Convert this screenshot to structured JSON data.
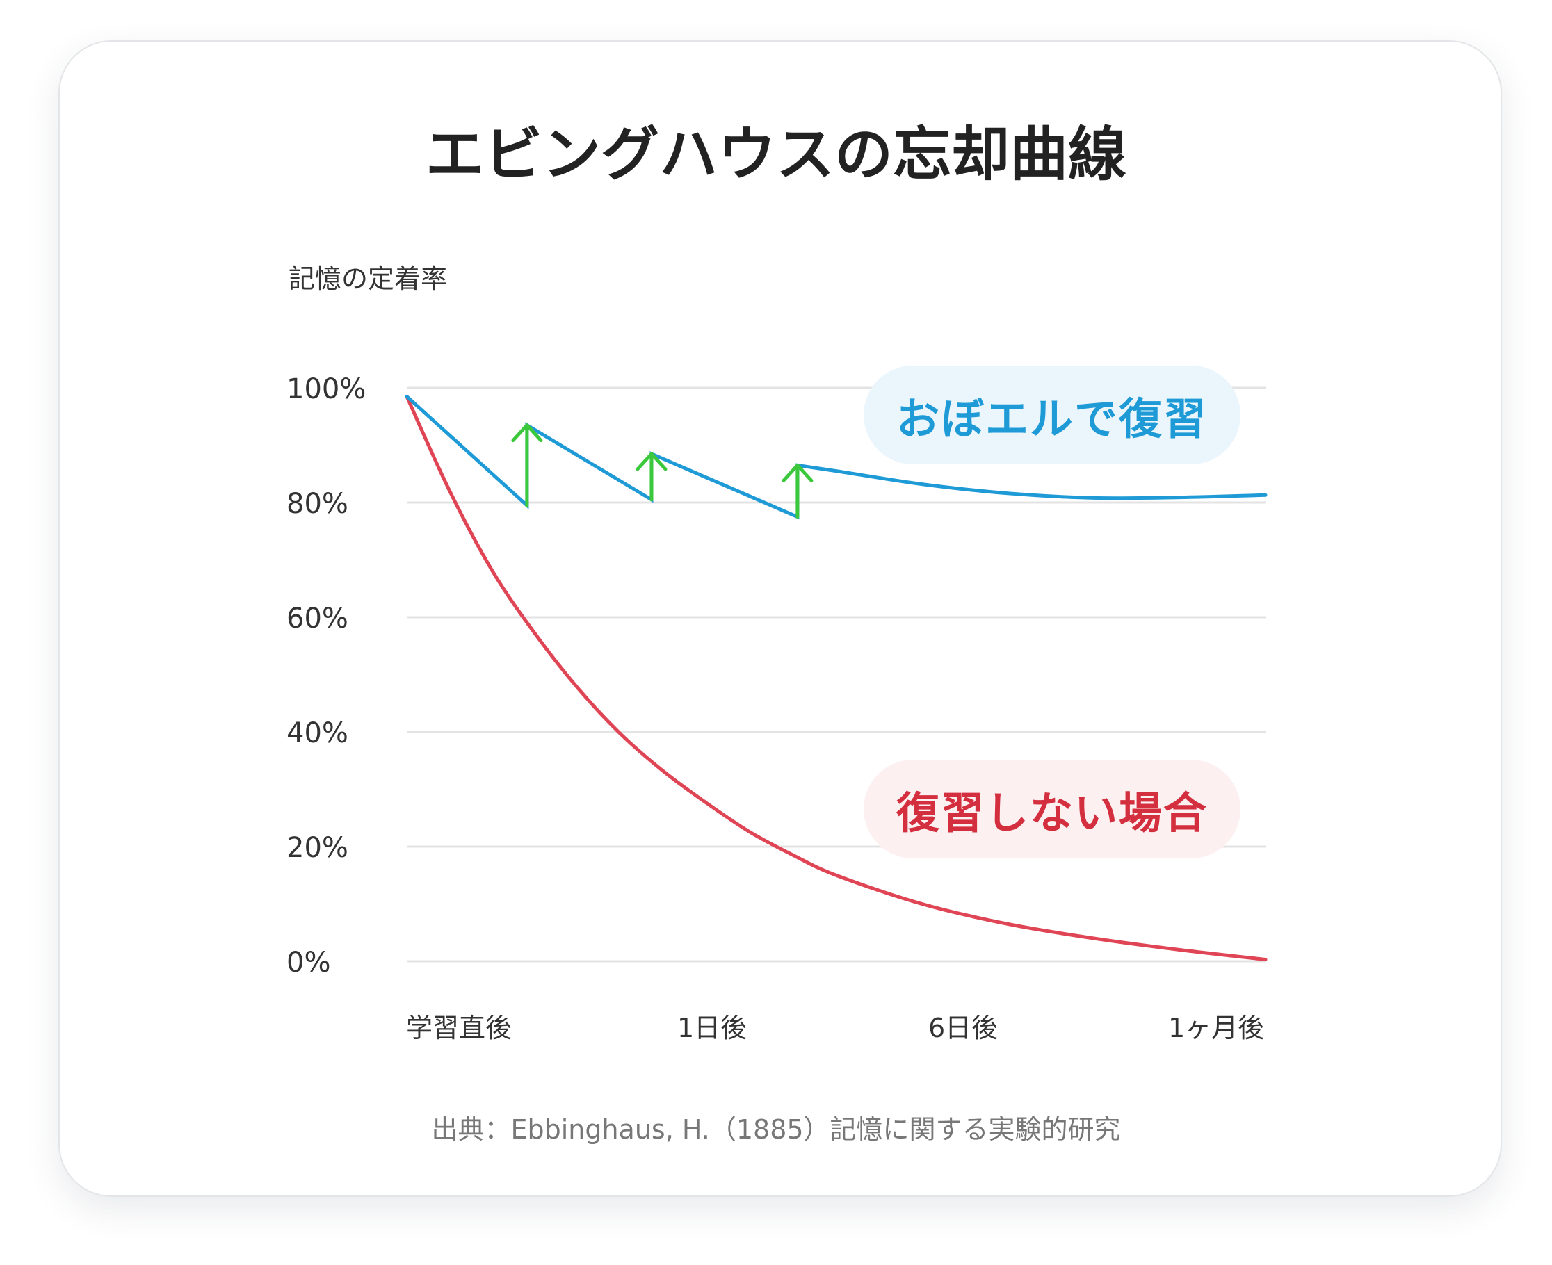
{
  "title": "エビングハウスの忘却曲線",
  "source": "出典：Ebbinghaus, H.（1885）記憶に関する実験的研究",
  "colors": {
    "review": "#1e9ad6",
    "no_review": "#e04555",
    "arrow": "#3cc83c",
    "grid": "#e3e3e3",
    "review_badge_bg": "#eaf5fc",
    "no_review_badge_bg": "#fdf0f1"
  },
  "chart_data": {
    "type": "line",
    "ylabel": "記憶の定着率",
    "y_ticks": [
      "100%",
      "80%",
      "60%",
      "40%",
      "20%",
      "0%"
    ],
    "x_ticks": [
      "学習直後",
      "1日後",
      "6日後",
      "1ヶ月後"
    ],
    "ylim": [
      0,
      100
    ],
    "grid": true,
    "series": [
      {
        "name": "おぼエルで復習",
        "color": "#1e9ad6",
        "points": [
          [
            0,
            98.5
          ],
          [
            0.14,
            79.5
          ],
          [
            0.14,
            93.5
          ],
          [
            0.285,
            80.5
          ],
          [
            0.285,
            88.5
          ],
          [
            0.455,
            77.5
          ],
          [
            0.455,
            86.5
          ],
          [
            0.5,
            85.5
          ],
          [
            0.6,
            83.2
          ],
          [
            0.7,
            81.6
          ],
          [
            0.8,
            80.8
          ],
          [
            0.9,
            80.9
          ],
          [
            1.0,
            81.3
          ]
        ]
      },
      {
        "name": "復習しない場合",
        "color": "#e04555",
        "points": [
          [
            0,
            98.5
          ],
          [
            0.05,
            82
          ],
          [
            0.1,
            68
          ],
          [
            0.15,
            57
          ],
          [
            0.2,
            47.5
          ],
          [
            0.25,
            39.5
          ],
          [
            0.3,
            33
          ],
          [
            0.35,
            27.5
          ],
          [
            0.4,
            22.5
          ],
          [
            0.45,
            18.5
          ],
          [
            0.5,
            15
          ],
          [
            0.6,
            10
          ],
          [
            0.7,
            6.5
          ],
          [
            0.8,
            4
          ],
          [
            0.9,
            2
          ],
          [
            1.0,
            0.3
          ]
        ]
      }
    ],
    "review_arrows": [
      {
        "x": 0.14,
        "from": 79.5,
        "to": 93.5
      },
      {
        "x": 0.285,
        "from": 80.5,
        "to": 88.5
      },
      {
        "x": 0.455,
        "from": 77.5,
        "to": 86.5
      }
    ]
  }
}
